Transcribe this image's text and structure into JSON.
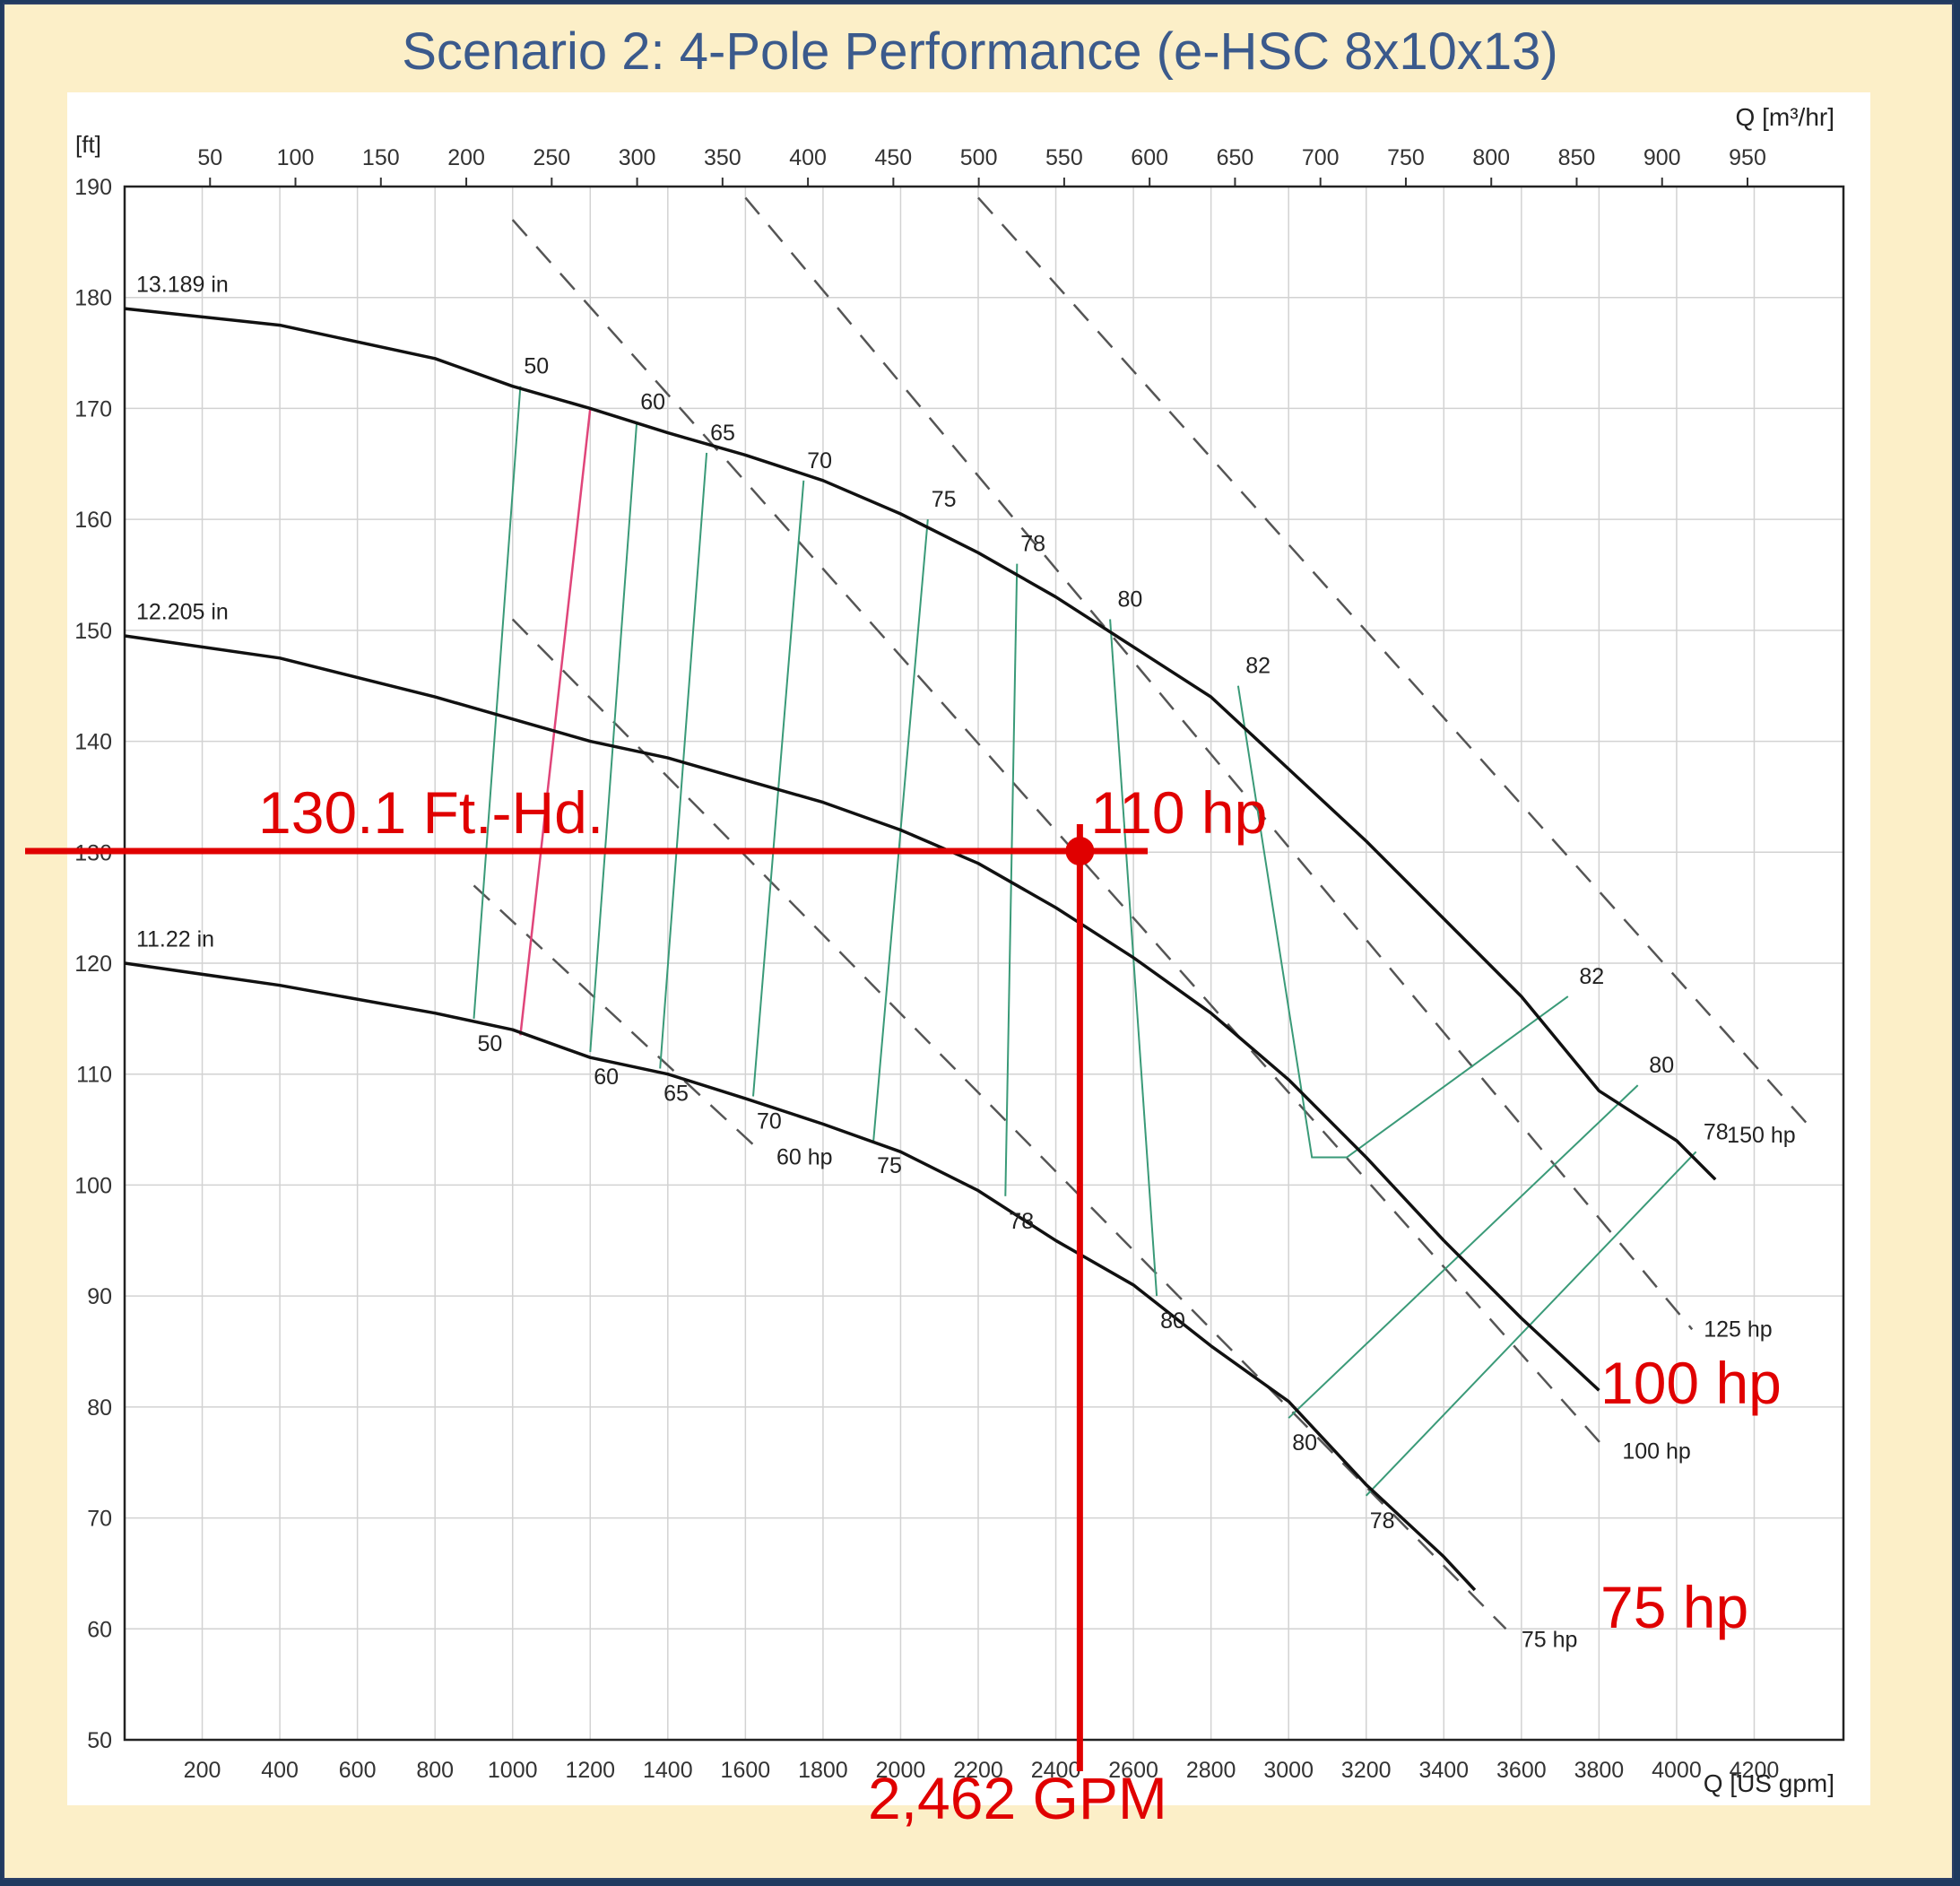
{
  "slide": {
    "title": "Scenario 2: 4-Pole Performance (e-HSC 8x10x13)"
  },
  "colors": {
    "background": "#fcefc8",
    "title": "#3b5a8c",
    "annotation": "#e00000",
    "head_curve": "#111111",
    "efficiency_line": "#3a9a78",
    "min_flow_line": "#e0457a",
    "power_line": "#555555"
  },
  "chart_data": {
    "type": "line",
    "title": "",
    "xlabel": "Q [US gpm]",
    "x2label": "Q [m³/hr]",
    "ylabel": "[ft]",
    "xlim": [
      0,
      4430
    ],
    "ylim": [
      50,
      190
    ],
    "grid": true,
    "x_ticks": [
      200,
      400,
      600,
      800,
      1000,
      1200,
      1400,
      1600,
      1800,
      2000,
      2200,
      2400,
      2600,
      2800,
      3000,
      3200,
      3400,
      3600,
      3800,
      4000,
      4200
    ],
    "x2_ticks": [
      50,
      100,
      150,
      200,
      250,
      300,
      350,
      400,
      450,
      500,
      550,
      600,
      650,
      700,
      750,
      800,
      850,
      900,
      950
    ],
    "y_ticks": [
      50,
      60,
      70,
      80,
      90,
      100,
      110,
      120,
      130,
      140,
      150,
      160,
      170,
      180,
      190
    ],
    "series": [
      {
        "name": "13.189 in",
        "x": [
          0,
          400,
          800,
          1000,
          1200,
          1400,
          1600,
          1800,
          2000,
          2200,
          2400,
          2600,
          2800,
          3000,
          3200,
          3400,
          3600,
          3800,
          4000,
          4100
        ],
        "y": [
          179,
          177.5,
          174.5,
          172,
          170,
          167.8,
          165.8,
          163.5,
          160.5,
          157,
          153,
          148.5,
          144,
          137.5,
          131,
          124,
          117,
          108.5,
          104,
          100.5
        ]
      },
      {
        "name": "12.205 in",
        "x": [
          0,
          400,
          800,
          1000,
          1200,
          1400,
          1600,
          1800,
          2000,
          2200,
          2400,
          2600,
          2800,
          3000,
          3200,
          3400,
          3600,
          3800
        ],
        "y": [
          149.5,
          147.5,
          144,
          142,
          140,
          138.5,
          136.5,
          134.5,
          132,
          129,
          125,
          120.5,
          115.5,
          109.5,
          102.5,
          95,
          88,
          81.5
        ]
      },
      {
        "name": "11.22 in",
        "x": [
          0,
          400,
          800,
          1000,
          1200,
          1400,
          1600,
          1800,
          2000,
          2200,
          2400,
          2600,
          2800,
          3000,
          3200,
          3400,
          3480
        ],
        "y": [
          120,
          118,
          115.5,
          114,
          111.5,
          110,
          107.8,
          105.5,
          103,
          99.5,
          95,
          91,
          85.5,
          80.5,
          73,
          66.5,
          63.5
        ]
      }
    ],
    "efficiency_lines": [
      {
        "label": "50",
        "x": [
          1020,
          900
        ],
        "y": [
          172,
          115
        ]
      },
      {
        "label": "60",
        "x": [
          1320,
          1200
        ],
        "y": [
          168.8,
          112
        ]
      },
      {
        "label": "65",
        "x": [
          1500,
          1380
        ],
        "y": [
          166,
          110.5
        ]
      },
      {
        "label": "70",
        "x": [
          1750,
          1620
        ],
        "y": [
          163.5,
          108
        ]
      },
      {
        "label": "75",
        "x": [
          2070,
          1930
        ],
        "y": [
          160,
          104
        ]
      },
      {
        "label": "78",
        "x": [
          2300,
          2270
        ],
        "y": [
          156,
          99
        ]
      },
      {
        "label": "80",
        "x": [
          2540,
          2660
        ],
        "y": [
          151,
          90
        ]
      },
      {
        "label": "82",
        "x": [
          2870,
          3060,
          3150,
          3720
        ],
        "y": [
          145,
          102.5,
          102.5,
          117
        ]
      },
      {
        "label": "80",
        "x": [
          3000,
          3900
        ],
        "y": [
          79,
          109
        ]
      },
      {
        "label": "78",
        "x": [
          3200,
          4050
        ],
        "y": [
          72,
          103
        ]
      }
    ],
    "efficiency_labels": [
      {
        "text": "50",
        "x": 1020,
        "y": 172,
        "pos": "above"
      },
      {
        "text": "60",
        "x": 1320,
        "y": 168.8,
        "pos": "above"
      },
      {
        "text": "65",
        "x": 1500,
        "y": 166,
        "pos": "above"
      },
      {
        "text": "70",
        "x": 1750,
        "y": 163.5,
        "pos": "above"
      },
      {
        "text": "75",
        "x": 2070,
        "y": 160,
        "pos": "above"
      },
      {
        "text": "78",
        "x": 2300,
        "y": 156,
        "pos": "above"
      },
      {
        "text": "80",
        "x": 2550,
        "y": 151,
        "pos": "above"
      },
      {
        "text": "82",
        "x": 2880,
        "y": 145,
        "pos": "above"
      },
      {
        "text": "82",
        "x": 3740,
        "y": 117,
        "pos": "above"
      },
      {
        "text": "80",
        "x": 3920,
        "y": 109,
        "pos": "above"
      },
      {
        "text": "78",
        "x": 4060,
        "y": 103,
        "pos": "above"
      },
      {
        "text": "50",
        "x": 900,
        "y": 115,
        "pos": "below"
      },
      {
        "text": "60",
        "x": 1200,
        "y": 112,
        "pos": "below"
      },
      {
        "text": "65",
        "x": 1380,
        "y": 110.5,
        "pos": "below"
      },
      {
        "text": "70",
        "x": 1620,
        "y": 108,
        "pos": "below"
      },
      {
        "text": "75",
        "x": 1930,
        "y": 104,
        "pos": "below"
      },
      {
        "text": "78",
        "x": 2270,
        "y": 99,
        "pos": "below"
      },
      {
        "text": "80",
        "x": 2660,
        "y": 90,
        "pos": "below"
      },
      {
        "text": "80",
        "x": 3000,
        "y": 79,
        "pos": "below"
      },
      {
        "text": "78",
        "x": 3200,
        "y": 72,
        "pos": "below"
      }
    ],
    "min_flow_line": {
      "x": [
        1200,
        1020
      ],
      "y": [
        170,
        113.5
      ]
    },
    "power_lines": [
      {
        "label": "60 hp",
        "x": [
          900,
          1640
        ],
        "y": [
          127,
          103
        ]
      },
      {
        "label": "75 hp",
        "x": [
          1000,
          3560
        ],
        "y": [
          151,
          60
        ]
      },
      {
        "label": "100 hp",
        "x": [
          1000,
          3810
        ],
        "y": [
          187,
          76.5
        ]
      },
      {
        "label": "125 hp",
        "x": [
          1600,
          4040
        ],
        "y": [
          189,
          87
        ]
      },
      {
        "label": "150 hp",
        "x": [
          2200,
          4350
        ],
        "y": [
          189,
          105
        ]
      }
    ],
    "power_labels": [
      {
        "text": "60 hp",
        "x": 1680,
        "y": 102.5
      },
      {
        "text": "75 hp",
        "x": 3600,
        "y": 59
      },
      {
        "text": "100 hp",
        "x": 3860,
        "y": 76
      },
      {
        "text": "125 hp",
        "x": 4070,
        "y": 87
      },
      {
        "text": "150 hp",
        "x": 4130,
        "y": 104.5
      }
    ],
    "impeller_labels": [
      {
        "text": "13.189 in",
        "x": 30,
        "y": 180.5
      },
      {
        "text": "12.205 in",
        "x": 30,
        "y": 151
      },
      {
        "text": "11.22 in",
        "x": 30,
        "y": 121.5
      }
    ],
    "operating_point": {
      "x": 2462,
      "y": 130.1
    },
    "annotations": {
      "head": "130.1 Ft.-Hd.",
      "flow": "2,462 GPM",
      "power_110": "110 hp",
      "power_100": "100 hp",
      "power_75": "75 hp"
    }
  }
}
